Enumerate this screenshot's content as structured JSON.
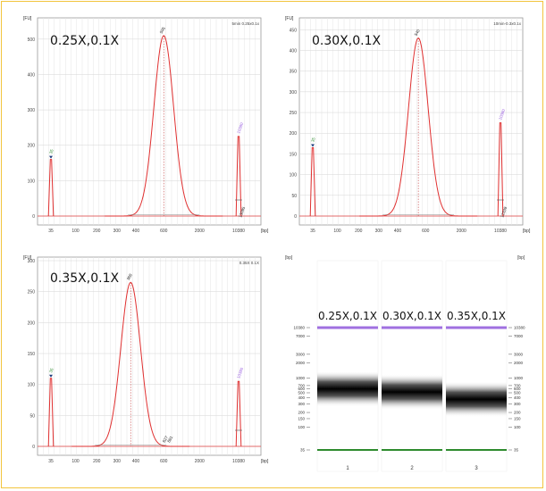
{
  "figure_frame_color": "#f2c53d",
  "chart_data": [
    {
      "type": "line",
      "panel": "electropherogram",
      "sample_label": "0.25X,0.1X",
      "corner_title": "5min 0.25x0.1x",
      "ylabel": "[FU]",
      "xlabel": "[bp]",
      "ylim": [
        0,
        550
      ],
      "y_ticks": [
        0,
        100,
        200,
        300,
        400,
        500
      ],
      "x_ticks": [
        "35",
        "100",
        "200",
        "300",
        "400",
        "600",
        "2000",
        "10380"
      ],
      "series": [
        {
          "peak_bp": 35,
          "peak_fu": 160,
          "role": "lower-marker"
        },
        {
          "peak_bp": 600,
          "peak_fu": 510,
          "role": "sample"
        },
        {
          "peak_bp": 10380,
          "peak_fu": 225,
          "role": "upper-marker"
        }
      ],
      "marker_labels": {
        "lower": "35",
        "upper": "10380"
      },
      "annotation_labels": [
        "595",
        "13095"
      ]
    },
    {
      "type": "line",
      "panel": "electropherogram",
      "sample_label": "0.30X,0.1X",
      "corner_title": "10min-0.3x0.1x",
      "ylabel": "[FU]",
      "xlabel": "[bp]",
      "ylim": [
        0,
        470
      ],
      "y_ticks": [
        0,
        50,
        100,
        150,
        200,
        250,
        300,
        350,
        400,
        450
      ],
      "x_ticks": [
        "35",
        "100",
        "200",
        "300",
        "400",
        "600",
        "2000",
        "10380"
      ],
      "series": [
        {
          "peak_bp": 35,
          "peak_fu": 165,
          "role": "lower-marker"
        },
        {
          "peak_bp": 540,
          "peak_fu": 430,
          "role": "sample"
        },
        {
          "peak_bp": 10380,
          "peak_fu": 225,
          "role": "upper-marker"
        }
      ],
      "marker_labels": {
        "lower": "35",
        "upper": "10380"
      },
      "annotation_labels": [
        "540",
        "12339"
      ]
    },
    {
      "type": "line",
      "panel": "electropherogram",
      "sample_label": "0.35X,0.1X",
      "corner_title": "0.35X 0.1X",
      "ylabel": "[FU]",
      "xlabel": "[bp]",
      "ylim": [
        0,
        300
      ],
      "y_ticks": [
        0,
        50,
        100,
        150,
        200,
        250,
        300
      ],
      "x_ticks": [
        "35",
        "100",
        "200",
        "300",
        "400",
        "600",
        "2000",
        "10380"
      ],
      "series": [
        {
          "peak_bp": 35,
          "peak_fu": 110,
          "role": "lower-marker"
        },
        {
          "peak_bp": 370,
          "peak_fu": 265,
          "role": "sample"
        },
        {
          "peak_bp": 10380,
          "peak_fu": 105,
          "role": "upper-marker"
        }
      ],
      "marker_labels": {
        "lower": "35",
        "upper": "10380"
      },
      "annotation_labels": [
        "368",
        "627",
        "881"
      ]
    },
    {
      "type": "heatmap",
      "panel": "gel",
      "ylabel_left": "[bp]",
      "ylabel_right": "[bp]",
      "ladder_ticks": [
        "10380",
        "7000",
        "3000",
        "2000",
        "1000",
        "700",
        "600",
        "500",
        "400",
        "300",
        "200",
        "150",
        "100",
        "35"
      ],
      "ladder_bp": [
        10380,
        7000,
        3000,
        2000,
        1000,
        700,
        600,
        500,
        400,
        300,
        200,
        150,
        100,
        35
      ],
      "lanes": [
        {
          "label": "0.25X,0.1X",
          "lane_number": "1",
          "band_bp": 600
        },
        {
          "label": "0.30X,0.1X",
          "lane_number": "2",
          "band_bp": 520
        },
        {
          "label": "0.35X,0.1X",
          "lane_number": "3",
          "band_bp": 370
        }
      ],
      "upper_marker_color": "#a070e0",
      "lower_marker_color": "#2e8b2e"
    }
  ]
}
